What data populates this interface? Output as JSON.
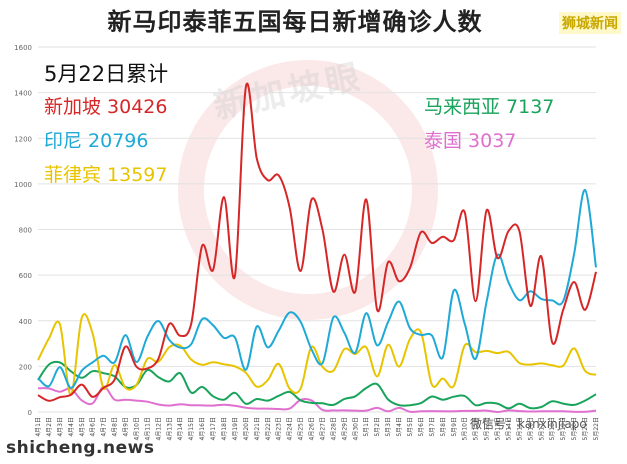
{
  "header": {
    "title": "新马印泰菲五国每日新增确诊人数",
    "brand": "狮城新闻"
  },
  "summary": {
    "heading": "5月22日累计",
    "items": [
      {
        "label": "新加坡 30426",
        "color": "#d62728"
      },
      {
        "label": "印尼 20796",
        "color": "#1fa9d6"
      },
      {
        "label": "菲律宾 13597",
        "color": "#e8c400"
      },
      {
        "label": "马来西亚 7137",
        "color": "#19a35b"
      },
      {
        "label": "泰国 3037",
        "color": "#e070d0"
      }
    ]
  },
  "watermark": "新加坡眼",
  "footer": {
    "site": "shicheng.news",
    "wechat": "微信号：kanxinjiapo"
  },
  "chart_data": {
    "type": "line",
    "y_ticks": [
      0,
      200,
      400,
      600,
      800,
      1000,
      1200,
      1400,
      1600
    ],
    "ylim": [
      0,
      1600
    ],
    "grid": true,
    "x": [
      "4月1日",
      "4月2日",
      "4月3日",
      "4月4日",
      "4月5日",
      "4月6日",
      "4月7日",
      "4月8日",
      "4月9日",
      "4月10日",
      "4月11日",
      "4月12日",
      "4月13日",
      "4月14日",
      "4月15日",
      "4月16日",
      "4月17日",
      "4月18日",
      "4月19日",
      "4月20日",
      "4月21日",
      "4月22日",
      "4月23日",
      "4月24日",
      "4月25日",
      "4月26日",
      "4月27日",
      "4月28日",
      "4月29日",
      "4月30日",
      "5月1日",
      "5月2日",
      "5月3日",
      "5月4日",
      "5月5日",
      "5月6日",
      "5月7日",
      "5月8日",
      "5月9日",
      "5月10日",
      "5月11日",
      "5月12日",
      "5月13日",
      "5月14日",
      "5月15日",
      "5月16日",
      "5月17日",
      "5月18日",
      "5月19日",
      "5月20日",
      "5月21日",
      "5月22日"
    ],
    "series": [
      {
        "name": "新加坡",
        "color": "#d62728",
        "values": [
          74,
          49,
          65,
          75,
          120,
          66,
          106,
          142,
          287,
          198,
          191,
          233,
          386,
          334,
          386,
          728,
          623,
          942,
          596,
          1426,
          1111,
          1016,
          1037,
          897,
          618,
          931,
          799,
          528,
          690,
          528,
          932,
          447,
          657,
          573,
          632,
          788,
          741,
          768,
          753,
          876,
          486,
          884,
          675,
          793,
          793,
          465,
          682,
          305,
          448,
          570,
          448,
          614
        ]
      },
      {
        "name": "印尼",
        "color": "#1fa9d6",
        "values": [
          149,
          113,
          196,
          106,
          181,
          218,
          247,
          218,
          337,
          219,
          330,
          399,
          316,
          282,
          297,
          407,
          380,
          325,
          327,
          185,
          375,
          283,
          357,
          436,
          396,
          275,
          214,
          415,
          347,
          260,
          433,
          292,
          395,
          484,
          367,
          338,
          336,
          240,
          533,
          387,
          233,
          484,
          689,
          568,
          490,
          529,
          496,
          489,
          486,
          693,
          973,
          634
        ]
      },
      {
        "name": "菲律宾",
        "color": "#e8c400",
        "values": [
          227,
          322,
          385,
          76,
          414,
          343,
          104,
          206,
          106,
          119,
          233,
          220,
          284,
          291,
          230,
          207,
          218,
          209,
          200,
          172,
          111,
          140,
          211,
          102,
          102,
          285,
          198,
          181,
          276,
          254,
          284,
          156,
          295,
          199,
          320,
          350,
          120,
          147,
          114,
          292,
          262,
          268,
          258,
          264,
          215,
          208,
          213,
          205,
          203,
          279,
          180,
          163
        ]
      },
      {
        "name": "马来西亚",
        "color": "#19a35b",
        "values": [
          140,
          208,
          217,
          179,
          150,
          179,
          170,
          156,
          109,
          118,
          184,
          153,
          134,
          170,
          85,
          110,
          69,
          54,
          84,
          36,
          57,
          50,
          71,
          88,
          51,
          40,
          38,
          31,
          57,
          69,
          105,
          122,
          55,
          30,
          30,
          39,
          68,
          54,
          67,
          70,
          30,
          40,
          37,
          16,
          36,
          17,
          22,
          47,
          37,
          31,
          50,
          78
        ]
      },
      {
        "name": "泰国",
        "color": "#e070d0",
        "values": [
          104,
          103,
          89,
          102,
          51,
          38,
          111,
          54,
          54,
          50,
          45,
          33,
          28,
          34,
          30,
          29,
          28,
          32,
          27,
          19,
          15,
          15,
          13,
          15,
          53,
          51,
          9,
          7,
          7,
          6,
          6,
          18,
          3,
          18,
          1,
          3,
          4,
          3,
          3,
          5,
          5,
          6,
          0,
          7,
          4,
          2,
          3,
          3,
          3,
          1,
          1,
          6
        ]
      }
    ]
  }
}
